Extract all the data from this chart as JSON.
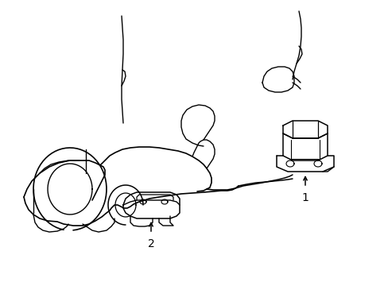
{
  "bg_color": "#ffffff",
  "line_color": "#000000",
  "lw": 1.1,
  "fig_width": 4.89,
  "fig_height": 3.6,
  "dpi": 100
}
